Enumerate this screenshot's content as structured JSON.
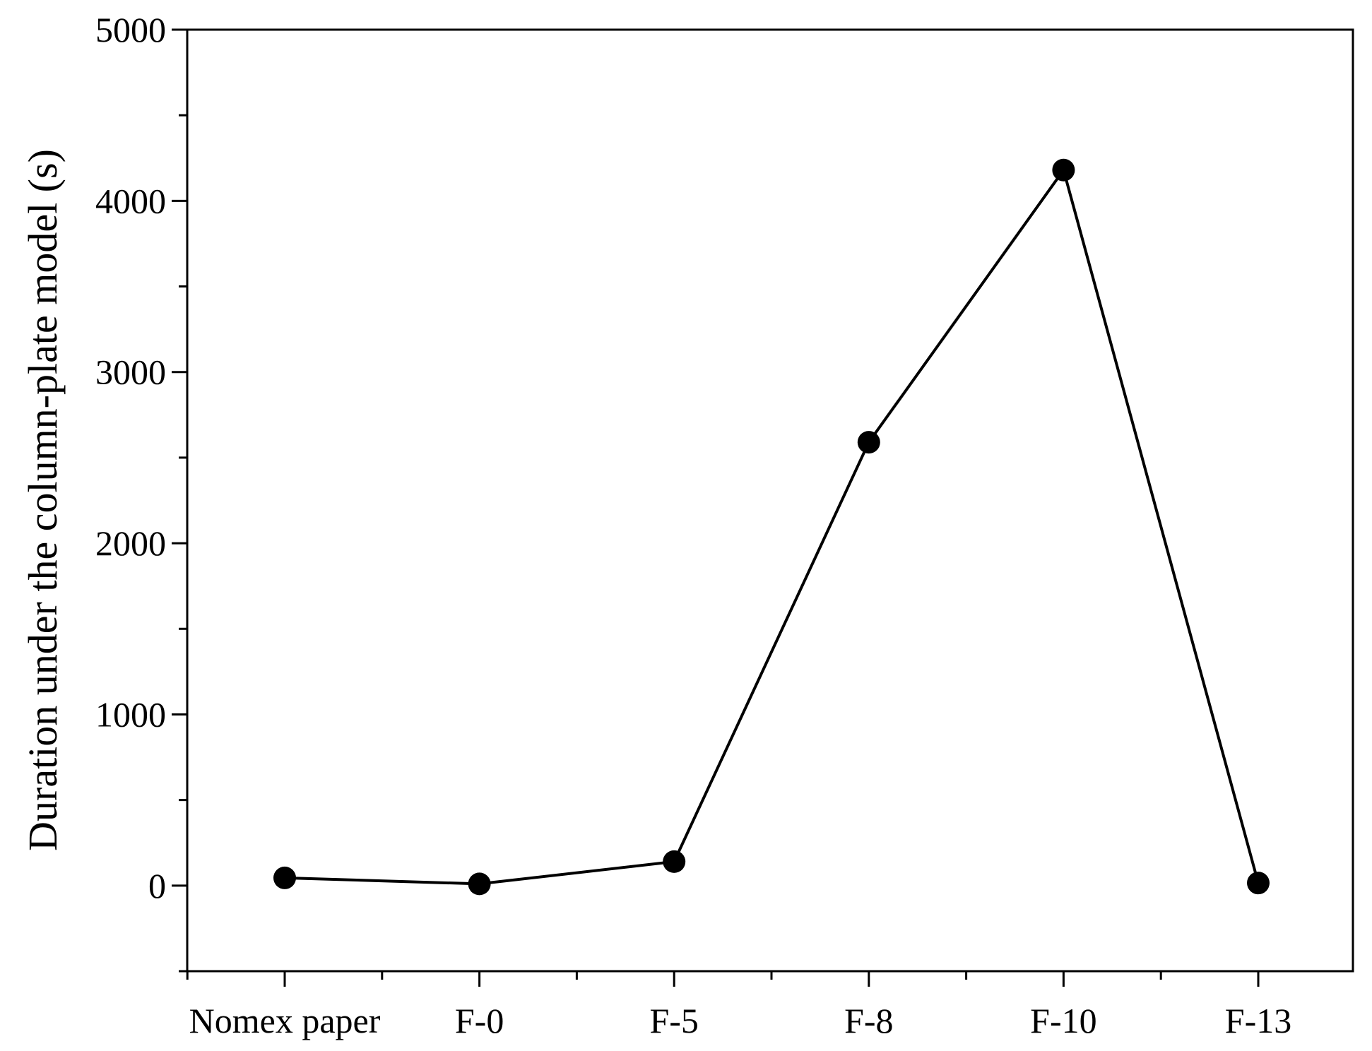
{
  "chart_data": {
    "type": "line",
    "title": "",
    "xlabel": "",
    "ylabel": "Duration under the column-plate model (s)",
    "categories": [
      "Nomex paper",
      "F-0",
      "F-5",
      "F-8",
      "F-10",
      "F-13"
    ],
    "series": [
      {
        "values": [
          45,
          10,
          140,
          2590,
          4180,
          15
        ]
      }
    ],
    "ylim": [
      -500,
      5000
    ],
    "yticks": [
      0,
      1000,
      2000,
      3000,
      4000,
      5000
    ],
    "y_minor_step": 500,
    "grid": false,
    "legend": "none",
    "colors": {
      "line": "#000000",
      "marker": "#000000",
      "axis": "#000000"
    }
  }
}
